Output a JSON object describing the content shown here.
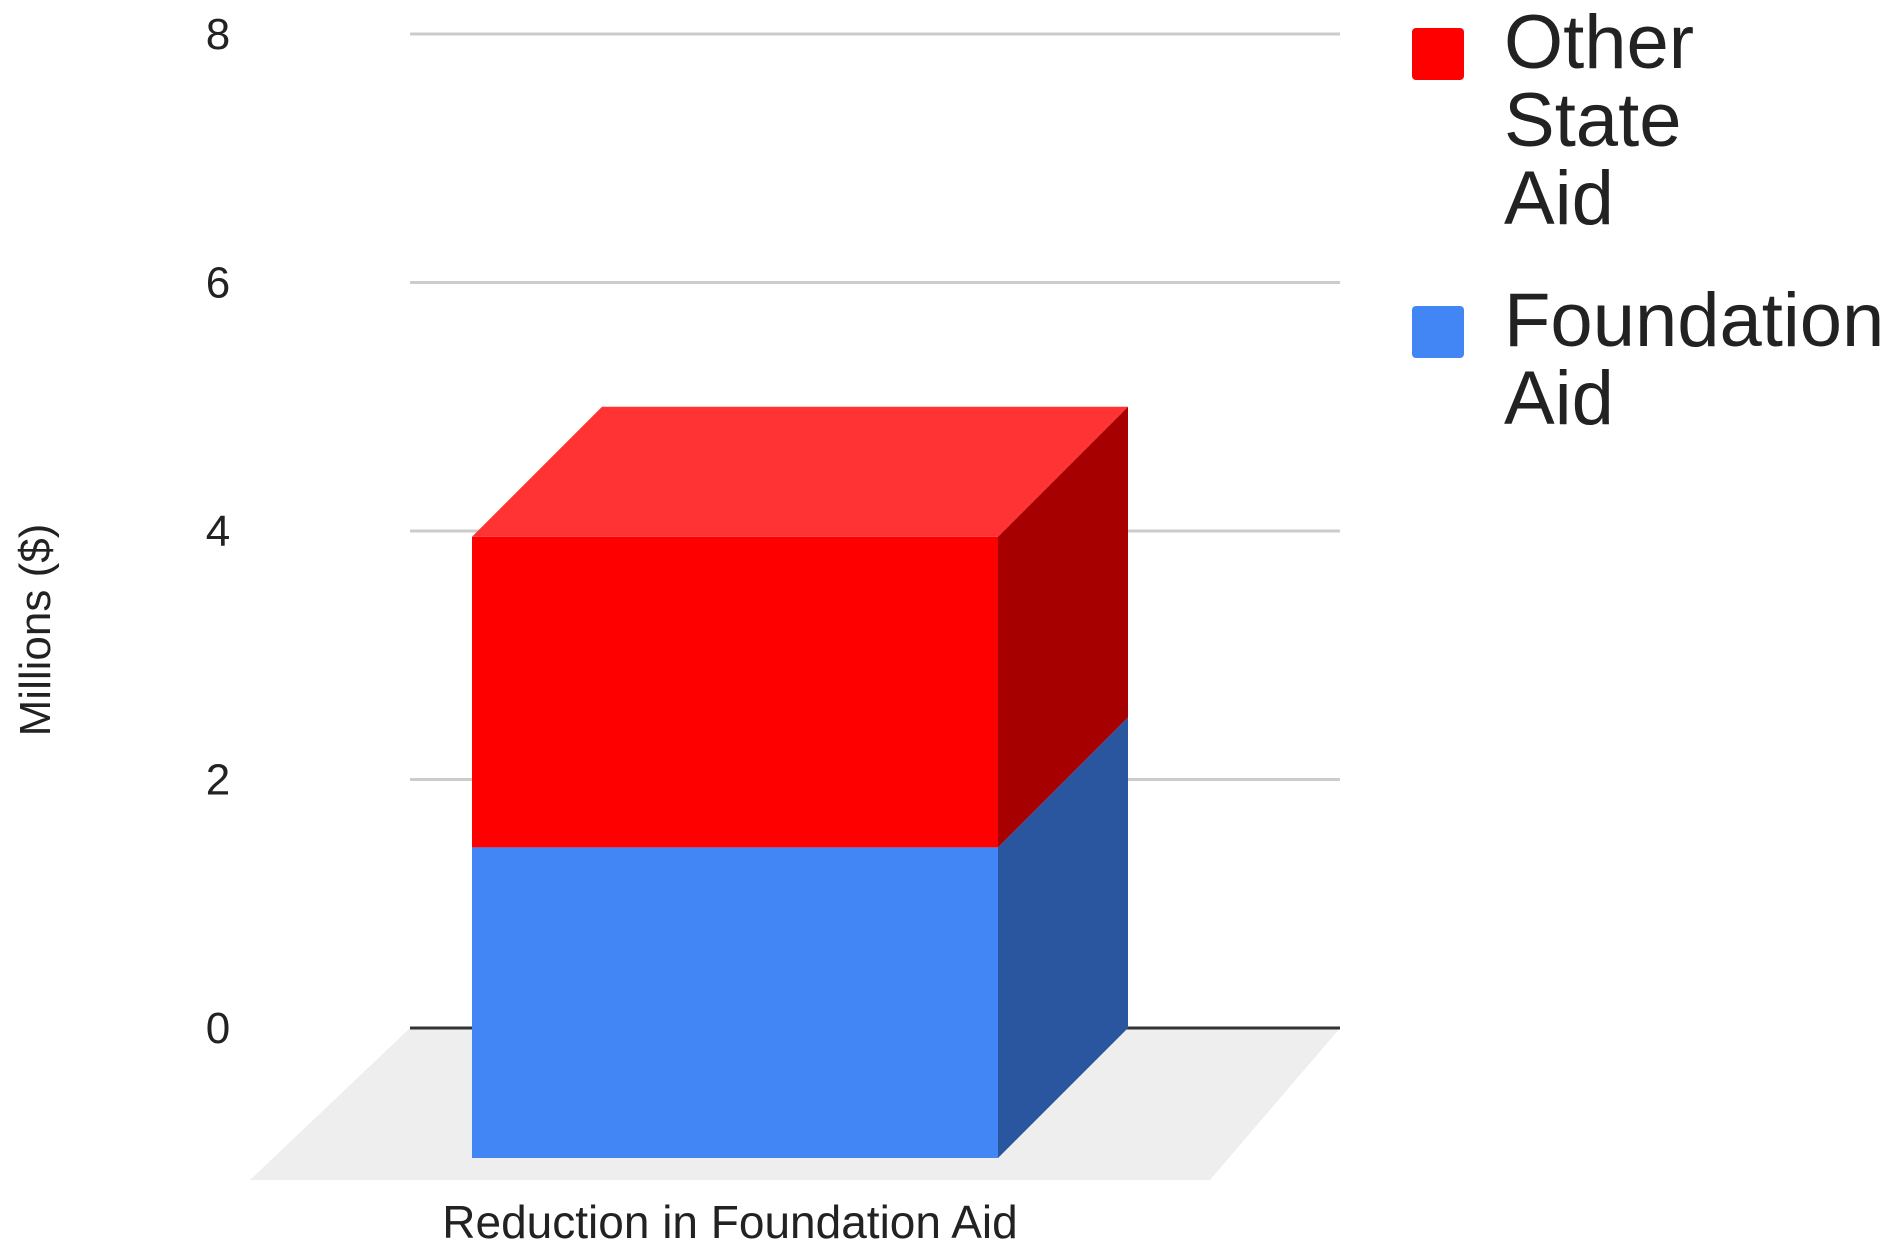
{
  "chart_data": {
    "type": "bar",
    "stacked": true,
    "three_d": true,
    "categories": [
      "Reduction in Foundation Aid"
    ],
    "series": [
      {
        "name": "Foundation Aid",
        "values": [
          2.5
        ],
        "color": "#4285f4",
        "side_color": "#2a56a0"
      },
      {
        "name": "Other State Aid",
        "values": [
          2.5
        ],
        "color": "#ff0000",
        "side_color": "#a60000",
        "top_color": "#ff3333"
      }
    ],
    "ylabel": "Millions ($)",
    "xlabel": "",
    "yticks": [
      0,
      2,
      4,
      6,
      8
    ],
    "ylim": [
      0,
      8
    ],
    "grid": true,
    "legend": "right",
    "floor_color": "#eeeeee",
    "grid_color": "#cccccc",
    "axis_color": "#333333"
  },
  "legend": {
    "items": [
      {
        "label": "Other State\nAid",
        "color": "#ff0000"
      },
      {
        "label": "Foundation\nAid",
        "color": "#4285f4"
      }
    ]
  }
}
